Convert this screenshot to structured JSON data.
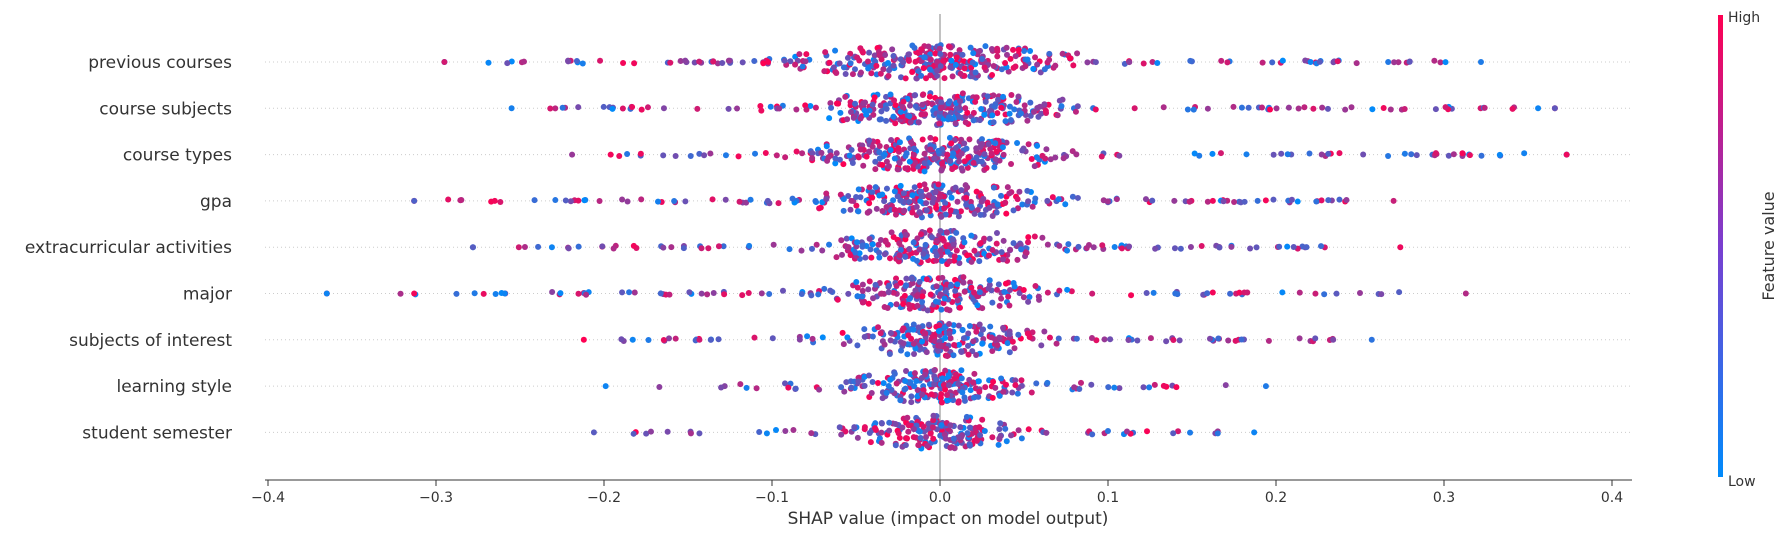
{
  "chart_data": {
    "type": "scatter",
    "title": "",
    "xlabel": "SHAP value (impact on model output)",
    "ylabel": "",
    "xlim": [
      -0.41,
      0.41
    ],
    "xticks": [
      "−0.4",
      "−0.3",
      "−0.2",
      "−0.1",
      "0.0",
      "0.1",
      "0.2",
      "0.3",
      "0.4"
    ],
    "features": [
      {
        "name": "previous courses",
        "xmin": -0.295,
        "xmax": 0.322,
        "low_outliers": [
          -0.295
        ],
        "high_outliers": []
      },
      {
        "name": "course subjects",
        "xmin": -0.255,
        "xmax": 0.366,
        "low_outliers": [],
        "high_outliers": [
          0.356,
          0.366
        ]
      },
      {
        "name": "course types",
        "xmin": -0.219,
        "xmax": 0.373,
        "low_outliers": [],
        "high_outliers": [
          0.373
        ]
      },
      {
        "name": "gpa",
        "xmin": -0.313,
        "xmax": 0.27,
        "low_outliers": [
          -0.313,
          -0.265
        ],
        "high_outliers": []
      },
      {
        "name": "extracurricular activities",
        "xmin": -0.278,
        "xmax": 0.274,
        "low_outliers": [
          -0.278,
          -0.231
        ],
        "high_outliers": []
      },
      {
        "name": "major",
        "xmin": -0.365,
        "xmax": 0.313,
        "low_outliers": [
          -0.365,
          -0.313,
          -0.259
        ],
        "high_outliers": []
      },
      {
        "name": "subjects of interest",
        "xmin": -0.212,
        "xmax": 0.257,
        "low_outliers": [],
        "high_outliers": []
      },
      {
        "name": "learning style",
        "xmin": -0.199,
        "xmax": 0.194,
        "low_outliers": [],
        "high_outliers": []
      },
      {
        "name": "student semester",
        "xmin": -0.206,
        "xmax": 0.187,
        "low_outliers": [],
        "high_outliers": []
      }
    ],
    "colorbar": {
      "title": "Feature value",
      "high_label": "High",
      "low_label": "Low",
      "high_color": "#ff0052",
      "low_color": "#008bfb"
    },
    "grid": false,
    "legend": "colorbar-right"
  }
}
